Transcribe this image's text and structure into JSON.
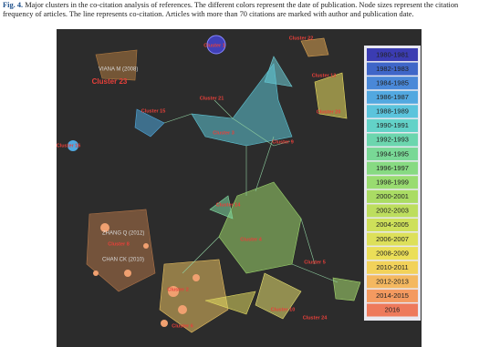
{
  "caption": {
    "label": "Fig. 4.",
    "text": "Major clusters in the co-citation analysis of references. The different colors represent the date of publication. Node sizes represent the citation frequency of articles. The line represents co-citation. Articles with more than 70 citations are marked with author and publication date."
  },
  "legend": {
    "items": [
      {
        "label": "1980-1981",
        "color": "#3b3cb2"
      },
      {
        "label": "1982-1983",
        "color": "#3f66c8"
      },
      {
        "label": "1984-1985",
        "color": "#4a88d8"
      },
      {
        "label": "1986-1987",
        "color": "#52a8e0"
      },
      {
        "label": "1988-1989",
        "color": "#5bc4dc"
      },
      {
        "label": "1990-1991",
        "color": "#63d2c8"
      },
      {
        "label": "1992-1993",
        "color": "#6cd6ae"
      },
      {
        "label": "1994-1995",
        "color": "#79d896"
      },
      {
        "label": "1996-1997",
        "color": "#87da82"
      },
      {
        "label": "1998-1999",
        "color": "#99dc70"
      },
      {
        "label": "2000-2001",
        "color": "#aadc64"
      },
      {
        "label": "2002-2003",
        "color": "#bdde5e"
      },
      {
        "label": "2004-2005",
        "color": "#cee05a"
      },
      {
        "label": "2006-2007",
        "color": "#dde05a"
      },
      {
        "label": "2008-2009",
        "color": "#ebdf58"
      },
      {
        "label": "2010-2011",
        "color": "#f2d25a"
      },
      {
        "label": "2012-2013",
        "color": "#f4b860"
      },
      {
        "label": "2014-2015",
        "color": "#f49a60"
      },
      {
        "label": "2016",
        "color": "#ee7a5c"
      }
    ]
  },
  "clusters": [
    "Cluster 1",
    "Cluster 22",
    "Cluster 23",
    "Cluster 13",
    "Cluster 21",
    "Cluster 20",
    "Cluster 15",
    "Cluster 3",
    "Cluster 16",
    "Cluster 9",
    "Cluster 14",
    "Cluster 4",
    "Cluster 8",
    "Cluster 5",
    "Cluster 2",
    "Cluster 10",
    "Cluster 24",
    "Cluster 6"
  ],
  "authors": [
    "VIANA M (2008)",
    "ZHANG Q (2012)",
    "CHAN CK (2010)"
  ]
}
